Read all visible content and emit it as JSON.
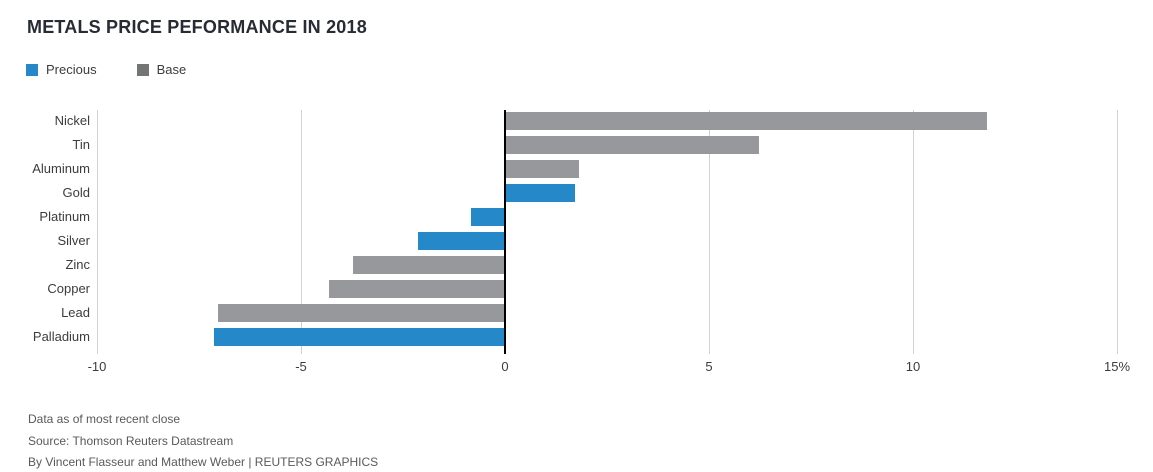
{
  "title": "METALS PRICE PEFORMANCE IN 2018",
  "legend": {
    "items": [
      {
        "label": "Precious",
        "swatch_color": "#2589c9"
      },
      {
        "label": "Base",
        "swatch_color": "#737476"
      }
    ]
  },
  "colors": {
    "precious_bar": "#2589c9",
    "base_bar": "#97989b",
    "gridline": "#d2d2d2",
    "zero_axis": "#000000",
    "title_text": "#272b33",
    "label_text": "#3c3c3c",
    "footer_text": "#595959"
  },
  "chart_data": {
    "type": "bar",
    "orientation": "horizontal",
    "title": "METALS PRICE PEFORMANCE IN 2018",
    "xlabel": "",
    "ylabel": "",
    "unit": "percent",
    "categories": [
      "Nickel",
      "Tin",
      "Aluminum",
      "Gold",
      "Platinum",
      "Silver",
      "Zinc",
      "Copper",
      "Lead",
      "Palladium"
    ],
    "values": [
      11.8,
      6.2,
      1.8,
      1.7,
      -0.8,
      -2.1,
      -3.7,
      -4.3,
      -7.0,
      -7.1
    ],
    "groups": [
      "Base",
      "Base",
      "Base",
      "Precious",
      "Precious",
      "Precious",
      "Base",
      "Base",
      "Base",
      "Precious"
    ],
    "series": [
      {
        "name": "Precious",
        "points": {
          "Gold": 1.7,
          "Platinum": -0.8,
          "Silver": -2.1,
          "Palladium": -7.1
        }
      },
      {
        "name": "Base",
        "points": {
          "Nickel": 11.8,
          "Tin": 6.2,
          "Aluminum": 1.8,
          "Zinc": -3.7,
          "Copper": -4.3,
          "Lead": -7.0
        }
      }
    ],
    "xlim": [
      -10,
      15
    ],
    "x_ticks": [
      -10,
      -5,
      0,
      5,
      10,
      15
    ],
    "x_tick_labels": [
      "-10",
      "-5",
      "0",
      "5",
      "10",
      "15%"
    ],
    "grid": true,
    "legend_position": "top-left"
  },
  "footer": {
    "line1": "Data as of most recent close",
    "line2": "Source: Thomson Reuters Datastream",
    "line3": "By Vincent Flasseur and Matthew Weber | REUTERS GRAPHICS"
  }
}
